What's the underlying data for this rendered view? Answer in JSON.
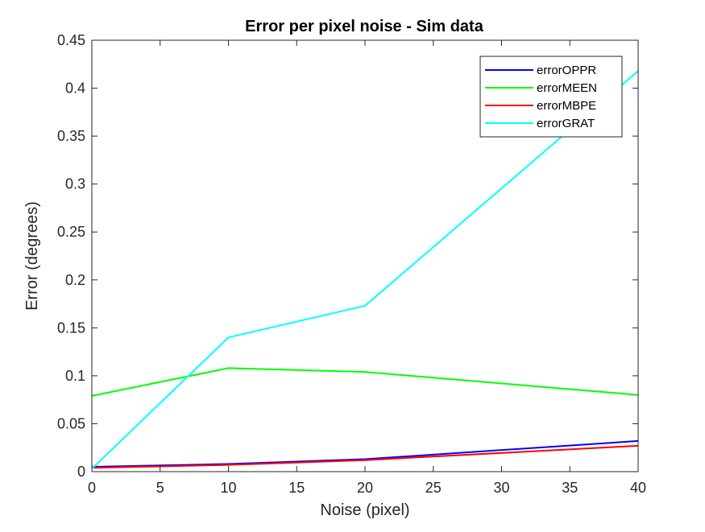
{
  "chart_data": {
    "type": "line",
    "title": "Error per pixel noise  - Sim data",
    "xlabel": "Noise (pixel)",
    "ylabel": "Error (degrees)",
    "xlim": [
      0,
      40
    ],
    "ylim": [
      0,
      0.45
    ],
    "x_ticks": [
      "0",
      "5",
      "10",
      "15",
      "20",
      "25",
      "30",
      "35",
      "40"
    ],
    "y_ticks": [
      "0",
      "0.05",
      "0.1",
      "0.15",
      "0.2",
      "0.25",
      "0.3",
      "0.35",
      "0.4",
      "0.45"
    ],
    "x": [
      0,
      10,
      20,
      40
    ],
    "series": [
      {
        "name": "errorOPPR",
        "color": "#0000ff",
        "values": [
          0.005,
          0.008,
          0.013,
          0.032
        ]
      },
      {
        "name": "errorMEEN",
        "color": "#00ff00",
        "values": [
          0.079,
          0.108,
          0.104,
          0.08
        ]
      },
      {
        "name": "errorMBPE",
        "color": "#ff0000",
        "values": [
          0.004,
          0.007,
          0.012,
          0.027
        ]
      },
      {
        "name": "errorGRAT",
        "color": "#00ffff",
        "values": [
          0.003,
          0.14,
          0.173,
          0.418
        ]
      }
    ],
    "grid": false,
    "legend_position": "top-right"
  }
}
